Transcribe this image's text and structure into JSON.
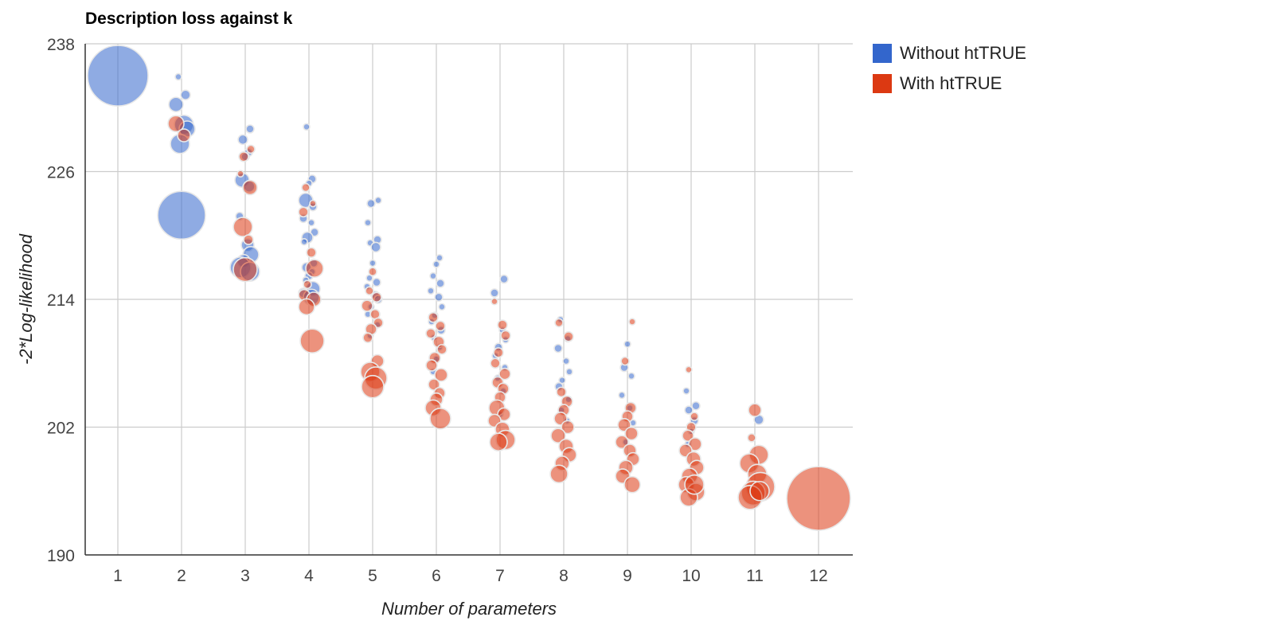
{
  "chart_data": {
    "type": "bubble",
    "title": "Description loss against k",
    "xlabel": "Number of parameters",
    "ylabel": "-2*Log-likelihood",
    "xticks": [
      1,
      2,
      3,
      4,
      5,
      6,
      7,
      8,
      9,
      10,
      11,
      12
    ],
    "ylim": [
      190,
      238
    ],
    "yticks": [
      190,
      202,
      214,
      226,
      238
    ],
    "grid": true,
    "legend_position": "top-right",
    "series": [
      {
        "name": "Without htTRUE",
        "color": "#3366cc",
        "points": [
          {
            "x": 1,
            "y": 235.0,
            "r": 38
          },
          {
            "x": 2,
            "y": 234.9,
            "r": 4
          },
          {
            "x": 2,
            "y": 233.2,
            "r": 6
          },
          {
            "x": 2,
            "y": 232.3,
            "r": 9
          },
          {
            "x": 2,
            "y": 230.4,
            "r": 12
          },
          {
            "x": 2,
            "y": 230.0,
            "r": 10
          },
          {
            "x": 2,
            "y": 228.6,
            "r": 12
          },
          {
            "x": 2,
            "y": 221.9,
            "r": 30
          },
          {
            "x": 3,
            "y": 230.0,
            "r": 5
          },
          {
            "x": 3,
            "y": 229.0,
            "r": 6
          },
          {
            "x": 3,
            "y": 227.8,
            "r": 5
          },
          {
            "x": 3,
            "y": 227.4,
            "r": 5
          },
          {
            "x": 3,
            "y": 225.2,
            "r": 9
          },
          {
            "x": 3,
            "y": 224.6,
            "r": 7
          },
          {
            "x": 3,
            "y": 221.8,
            "r": 5
          },
          {
            "x": 3,
            "y": 219.1,
            "r": 8
          },
          {
            "x": 3,
            "y": 218.2,
            "r": 10
          },
          {
            "x": 3,
            "y": 217.6,
            "r": 8
          },
          {
            "x": 3,
            "y": 217.0,
            "r": 13
          },
          {
            "x": 3,
            "y": 216.6,
            "r": 12
          },
          {
            "x": 4,
            "y": 230.2,
            "r": 4
          },
          {
            "x": 4,
            "y": 225.3,
            "r": 5
          },
          {
            "x": 4,
            "y": 224.9,
            "r": 4
          },
          {
            "x": 4,
            "y": 223.3,
            "r": 9
          },
          {
            "x": 4,
            "y": 222.7,
            "r": 5
          },
          {
            "x": 4,
            "y": 221.6,
            "r": 5
          },
          {
            "x": 4,
            "y": 221.2,
            "r": 4
          },
          {
            "x": 4,
            "y": 220.3,
            "r": 5
          },
          {
            "x": 4,
            "y": 219.8,
            "r": 7
          },
          {
            "x": 4,
            "y": 219.4,
            "r": 4
          },
          {
            "x": 4,
            "y": 217.4,
            "r": 5
          },
          {
            "x": 4,
            "y": 217.0,
            "r": 6
          },
          {
            "x": 4,
            "y": 216.6,
            "r": 4
          },
          {
            "x": 4,
            "y": 216.2,
            "r": 5
          },
          {
            "x": 4,
            "y": 215.8,
            "r": 4
          },
          {
            "x": 4,
            "y": 215.0,
            "r": 9
          },
          {
            "x": 4,
            "y": 214.6,
            "r": 6
          },
          {
            "x": 4,
            "y": 214.2,
            "r": 10
          },
          {
            "x": 5,
            "y": 223.3,
            "r": 4
          },
          {
            "x": 5,
            "y": 223.0,
            "r": 5
          },
          {
            "x": 5,
            "y": 221.2,
            "r": 4
          },
          {
            "x": 5,
            "y": 219.6,
            "r": 5
          },
          {
            "x": 5,
            "y": 219.3,
            "r": 4
          },
          {
            "x": 5,
            "y": 218.9,
            "r": 6
          },
          {
            "x": 5,
            "y": 217.4,
            "r": 4
          },
          {
            "x": 5,
            "y": 216.0,
            "r": 4
          },
          {
            "x": 5,
            "y": 215.6,
            "r": 5
          },
          {
            "x": 5,
            "y": 215.2,
            "r": 4
          },
          {
            "x": 5,
            "y": 214.4,
            "r": 5
          },
          {
            "x": 5,
            "y": 214.0,
            "r": 5
          },
          {
            "x": 5,
            "y": 213.3,
            "r": 4
          },
          {
            "x": 5,
            "y": 212.6,
            "r": 4
          },
          {
            "x": 5,
            "y": 211.6,
            "r": 4
          },
          {
            "x": 5,
            "y": 210.6,
            "r": 4
          },
          {
            "x": 6,
            "y": 217.9,
            "r": 4
          },
          {
            "x": 6,
            "y": 217.3,
            "r": 4
          },
          {
            "x": 6,
            "y": 216.2,
            "r": 4
          },
          {
            "x": 6,
            "y": 215.5,
            "r": 5
          },
          {
            "x": 6,
            "y": 214.8,
            "r": 4
          },
          {
            "x": 6,
            "y": 214.2,
            "r": 5
          },
          {
            "x": 6,
            "y": 213.3,
            "r": 4
          },
          {
            "x": 6,
            "y": 212.5,
            "r": 4
          },
          {
            "x": 6,
            "y": 211.9,
            "r": 4
          },
          {
            "x": 6,
            "y": 211.1,
            "r": 5
          },
          {
            "x": 6,
            "y": 210.4,
            "r": 4
          },
          {
            "x": 6,
            "y": 209.5,
            "r": 4
          },
          {
            "x": 6,
            "y": 208.4,
            "r": 4
          },
          {
            "x": 6,
            "y": 207.2,
            "r": 4
          },
          {
            "x": 7,
            "y": 215.9,
            "r": 5
          },
          {
            "x": 7,
            "y": 214.6,
            "r": 5
          },
          {
            "x": 7,
            "y": 211.1,
            "r": 4
          },
          {
            "x": 7,
            "y": 210.2,
            "r": 4
          },
          {
            "x": 7,
            "y": 209.5,
            "r": 5
          },
          {
            "x": 7,
            "y": 208.7,
            "r": 4
          },
          {
            "x": 7,
            "y": 207.6,
            "r": 4
          },
          {
            "x": 7,
            "y": 206.6,
            "r": 4
          },
          {
            "x": 7,
            "y": 205.4,
            "r": 4
          },
          {
            "x": 7,
            "y": 203.2,
            "r": 4
          },
          {
            "x": 8,
            "y": 212.1,
            "r": 4
          },
          {
            "x": 8,
            "y": 210.3,
            "r": 4
          },
          {
            "x": 8,
            "y": 209.4,
            "r": 5
          },
          {
            "x": 8,
            "y": 208.2,
            "r": 4
          },
          {
            "x": 8,
            "y": 207.2,
            "r": 4
          },
          {
            "x": 8,
            "y": 206.4,
            "r": 4
          },
          {
            "x": 8,
            "y": 205.8,
            "r": 5
          },
          {
            "x": 8,
            "y": 204.6,
            "r": 4
          },
          {
            "x": 8,
            "y": 203.6,
            "r": 4
          },
          {
            "x": 8,
            "y": 202.6,
            "r": 4
          },
          {
            "x": 9,
            "y": 209.8,
            "r": 4
          },
          {
            "x": 9,
            "y": 207.6,
            "r": 5
          },
          {
            "x": 9,
            "y": 206.8,
            "r": 4
          },
          {
            "x": 9,
            "y": 205.0,
            "r": 4
          },
          {
            "x": 9,
            "y": 203.8,
            "r": 4
          },
          {
            "x": 9,
            "y": 202.4,
            "r": 4
          },
          {
            "x": 9,
            "y": 200.6,
            "r": 4
          },
          {
            "x": 10,
            "y": 205.4,
            "r": 4
          },
          {
            "x": 10,
            "y": 204.0,
            "r": 5
          },
          {
            "x": 10,
            "y": 203.6,
            "r": 5
          },
          {
            "x": 10,
            "y": 202.6,
            "r": 5
          },
          {
            "x": 10,
            "y": 201.6,
            "r": 4
          },
          {
            "x": 10,
            "y": 200.4,
            "r": 4
          },
          {
            "x": 11,
            "y": 202.7,
            "r": 6
          }
        ]
      },
      {
        "name": "With htTRUE",
        "color": "#dc3912",
        "points": [
          {
            "x": 2,
            "y": 230.5,
            "r": 10
          },
          {
            "x": 2,
            "y": 229.4,
            "r": 8
          },
          {
            "x": 3,
            "y": 228.1,
            "r": 5
          },
          {
            "x": 3,
            "y": 227.4,
            "r": 6
          },
          {
            "x": 3,
            "y": 225.8,
            "r": 4
          },
          {
            "x": 3,
            "y": 224.5,
            "r": 9
          },
          {
            "x": 3,
            "y": 220.8,
            "r": 12
          },
          {
            "x": 3,
            "y": 219.6,
            "r": 6
          },
          {
            "x": 3,
            "y": 216.8,
            "r": 15
          },
          {
            "x": 4,
            "y": 224.5,
            "r": 5
          },
          {
            "x": 4,
            "y": 223.0,
            "r": 4
          },
          {
            "x": 4,
            "y": 222.2,
            "r": 6
          },
          {
            "x": 4,
            "y": 218.4,
            "r": 6
          },
          {
            "x": 4,
            "y": 216.9,
            "r": 11
          },
          {
            "x": 4,
            "y": 215.4,
            "r": 5
          },
          {
            "x": 4,
            "y": 214.4,
            "r": 7
          },
          {
            "x": 4,
            "y": 214.0,
            "r": 9
          },
          {
            "x": 4,
            "y": 213.3,
            "r": 10
          },
          {
            "x": 4,
            "y": 210.1,
            "r": 15
          },
          {
            "x": 5,
            "y": 216.6,
            "r": 5
          },
          {
            "x": 5,
            "y": 214.8,
            "r": 5
          },
          {
            "x": 5,
            "y": 214.2,
            "r": 6
          },
          {
            "x": 5,
            "y": 213.4,
            "r": 7
          },
          {
            "x": 5,
            "y": 212.6,
            "r": 6
          },
          {
            "x": 5,
            "y": 211.8,
            "r": 6
          },
          {
            "x": 5,
            "y": 211.2,
            "r": 7
          },
          {
            "x": 5,
            "y": 210.4,
            "r": 6
          },
          {
            "x": 5,
            "y": 208.2,
            "r": 8
          },
          {
            "x": 5,
            "y": 207.2,
            "r": 12
          },
          {
            "x": 5,
            "y": 206.6,
            "r": 14
          },
          {
            "x": 5,
            "y": 205.8,
            "r": 14
          },
          {
            "x": 6,
            "y": 212.3,
            "r": 6
          },
          {
            "x": 6,
            "y": 211.5,
            "r": 6
          },
          {
            "x": 6,
            "y": 210.8,
            "r": 6
          },
          {
            "x": 6,
            "y": 210.0,
            "r": 7
          },
          {
            "x": 6,
            "y": 209.3,
            "r": 6
          },
          {
            "x": 6,
            "y": 208.5,
            "r": 7
          },
          {
            "x": 6,
            "y": 207.8,
            "r": 7
          },
          {
            "x": 6,
            "y": 206.9,
            "r": 8
          },
          {
            "x": 6,
            "y": 206.0,
            "r": 7
          },
          {
            "x": 6,
            "y": 205.2,
            "r": 7
          },
          {
            "x": 6,
            "y": 204.6,
            "r": 8
          },
          {
            "x": 6,
            "y": 203.8,
            "r": 10
          },
          {
            "x": 6,
            "y": 202.8,
            "r": 13
          },
          {
            "x": 7,
            "y": 213.8,
            "r": 4
          },
          {
            "x": 7,
            "y": 211.6,
            "r": 6
          },
          {
            "x": 7,
            "y": 210.6,
            "r": 6
          },
          {
            "x": 7,
            "y": 209.0,
            "r": 6
          },
          {
            "x": 7,
            "y": 208.0,
            "r": 6
          },
          {
            "x": 7,
            "y": 207.0,
            "r": 7
          },
          {
            "x": 7,
            "y": 206.2,
            "r": 7
          },
          {
            "x": 7,
            "y": 205.6,
            "r": 7
          },
          {
            "x": 7,
            "y": 204.8,
            "r": 7
          },
          {
            "x": 7,
            "y": 203.8,
            "r": 10
          },
          {
            "x": 7,
            "y": 203.2,
            "r": 8
          },
          {
            "x": 7,
            "y": 202.6,
            "r": 8
          },
          {
            "x": 7,
            "y": 201.8,
            "r": 9
          },
          {
            "x": 7,
            "y": 200.8,
            "r": 12
          },
          {
            "x": 7,
            "y": 200.6,
            "r": 11
          },
          {
            "x": 8,
            "y": 211.8,
            "r": 5
          },
          {
            "x": 8,
            "y": 210.5,
            "r": 6
          },
          {
            "x": 8,
            "y": 205.3,
            "r": 6
          },
          {
            "x": 8,
            "y": 204.4,
            "r": 7
          },
          {
            "x": 8,
            "y": 203.6,
            "r": 7
          },
          {
            "x": 8,
            "y": 202.8,
            "r": 8
          },
          {
            "x": 8,
            "y": 202.0,
            "r": 8
          },
          {
            "x": 8,
            "y": 201.2,
            "r": 9
          },
          {
            "x": 8,
            "y": 200.2,
            "r": 9
          },
          {
            "x": 8,
            "y": 199.4,
            "r": 9
          },
          {
            "x": 8,
            "y": 198.6,
            "r": 9
          },
          {
            "x": 8,
            "y": 197.6,
            "r": 11
          },
          {
            "x": 9,
            "y": 211.9,
            "r": 4
          },
          {
            "x": 9,
            "y": 208.2,
            "r": 5
          },
          {
            "x": 9,
            "y": 203.8,
            "r": 7
          },
          {
            "x": 9,
            "y": 203.0,
            "r": 7
          },
          {
            "x": 9,
            "y": 202.2,
            "r": 8
          },
          {
            "x": 9,
            "y": 201.4,
            "r": 8
          },
          {
            "x": 9,
            "y": 200.6,
            "r": 8
          },
          {
            "x": 9,
            "y": 199.8,
            "r": 8
          },
          {
            "x": 9,
            "y": 199.0,
            "r": 8
          },
          {
            "x": 9,
            "y": 198.2,
            "r": 9
          },
          {
            "x": 9,
            "y": 197.4,
            "r": 9
          },
          {
            "x": 9,
            "y": 196.6,
            "r": 10
          },
          {
            "x": 10,
            "y": 207.4,
            "r": 4
          },
          {
            "x": 10,
            "y": 203.0,
            "r": 5
          },
          {
            "x": 10,
            "y": 202.0,
            "r": 6
          },
          {
            "x": 10,
            "y": 201.2,
            "r": 7
          },
          {
            "x": 10,
            "y": 200.4,
            "r": 8
          },
          {
            "x": 10,
            "y": 199.8,
            "r": 8
          },
          {
            "x": 10,
            "y": 199.0,
            "r": 9
          },
          {
            "x": 10,
            "y": 198.2,
            "r": 9
          },
          {
            "x": 10,
            "y": 197.4,
            "r": 10
          },
          {
            "x": 10,
            "y": 196.6,
            "r": 10
          },
          {
            "x": 10,
            "y": 195.9,
            "r": 11
          },
          {
            "x": 10,
            "y": 195.4,
            "r": 11
          },
          {
            "x": 10,
            "y": 196.6,
            "r": 12
          },
          {
            "x": 11,
            "y": 203.6,
            "r": 8
          },
          {
            "x": 11,
            "y": 201.0,
            "r": 5
          },
          {
            "x": 11,
            "y": 199.4,
            "r": 12
          },
          {
            "x": 11,
            "y": 198.6,
            "r": 12
          },
          {
            "x": 11,
            "y": 197.6,
            "r": 12
          },
          {
            "x": 11,
            "y": 196.4,
            "r": 18
          },
          {
            "x": 11,
            "y": 195.8,
            "r": 15
          },
          {
            "x": 11,
            "y": 195.4,
            "r": 15
          },
          {
            "x": 11,
            "y": 196.0,
            "r": 12
          },
          {
            "x": 12,
            "y": 195.3,
            "r": 40
          }
        ]
      }
    ]
  }
}
